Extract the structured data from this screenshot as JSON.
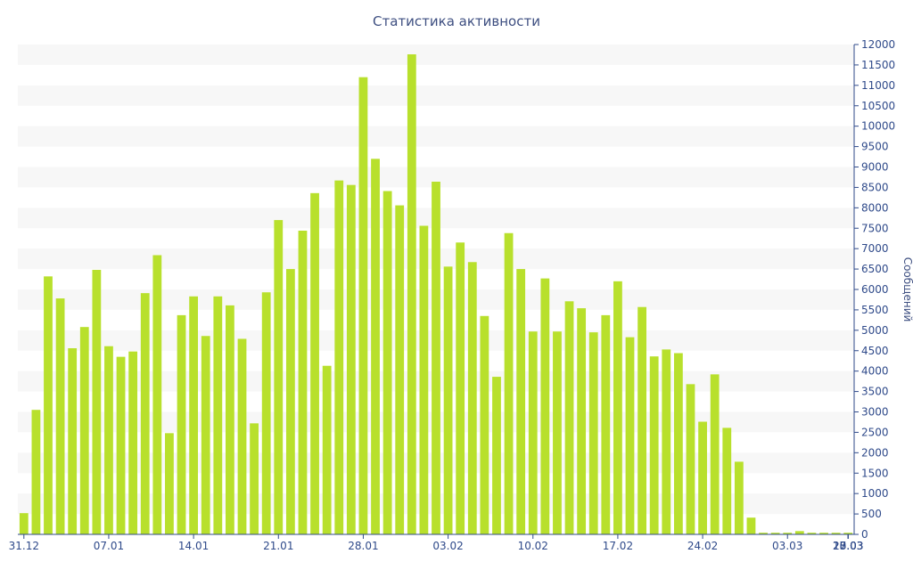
{
  "chart_data": {
    "type": "bar",
    "title": "Статистика активности",
    "xlabel": "",
    "ylabel": "Сообщений",
    "ylim": [
      0,
      12000
    ],
    "y_axis_side": "right",
    "grid": "horizontal bands",
    "legend": "none",
    "bar_color": "#b8e02c",
    "axis_color": "#2f4a8a",
    "band_color": "#f7f7f7",
    "yticks": [
      0,
      500,
      1000,
      1500,
      2000,
      2500,
      3000,
      3500,
      4000,
      4500,
      5000,
      5500,
      6000,
      6500,
      7000,
      7500,
      8000,
      8500,
      9000,
      9500,
      10000,
      10500,
      11000,
      11500,
      12000
    ],
    "x_tick_labels": [
      "31.12",
      "07.01",
      "14.01",
      "21.01",
      "28.01",
      "03.02",
      "10.02",
      "17.02",
      "24.02",
      "03.03",
      "10.03",
      "17.03",
      "23.03",
      "28.03"
    ],
    "values": [
      520,
      3050,
      6320,
      5780,
      4560,
      5080,
      6480,
      4610,
      4350,
      4480,
      5910,
      6840,
      2480,
      5370,
      5830,
      4860,
      5830,
      5610,
      4790,
      2720,
      5930,
      7700,
      6500,
      7440,
      8360,
      4130,
      8670,
      8560,
      11200,
      9200,
      8410,
      8060,
      11760,
      7560,
      8640,
      6560,
      7150,
      6670,
      5350,
      3860,
      7380,
      6500,
      4970,
      6270,
      4970,
      5710,
      5540,
      4950,
      5370,
      6200,
      4830,
      5570,
      4360,
      4530,
      4440,
      3680,
      2760,
      3920,
      2610,
      1780,
      410,
      40,
      40,
      40,
      80,
      40,
      40,
      40,
      40
    ]
  }
}
